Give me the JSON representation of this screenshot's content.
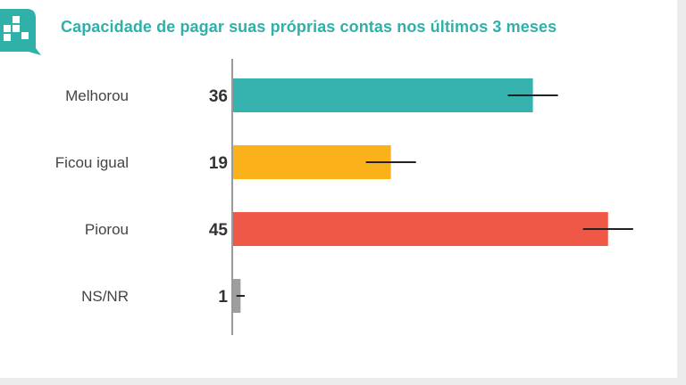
{
  "chart_data": {
    "type": "bar",
    "orientation": "horizontal",
    "title": "Capacidade de pagar suas próprias contas nos últimos 3 meses",
    "categories": [
      "Melhorou",
      "Ficou igual",
      "Piorou",
      "NS/NR"
    ],
    "values": [
      36,
      19,
      45,
      1
    ],
    "error_margin": [
      3,
      3,
      3,
      0.5
    ],
    "colors": [
      "#35b1ae",
      "#fbb21a",
      "#ef5846",
      "#9e9e9e"
    ],
    "xlim": [
      0,
      50
    ],
    "grid": false,
    "legend": "none"
  },
  "logo": {
    "icon": "quaest-logo-icon",
    "color": "#2fb0a8"
  }
}
